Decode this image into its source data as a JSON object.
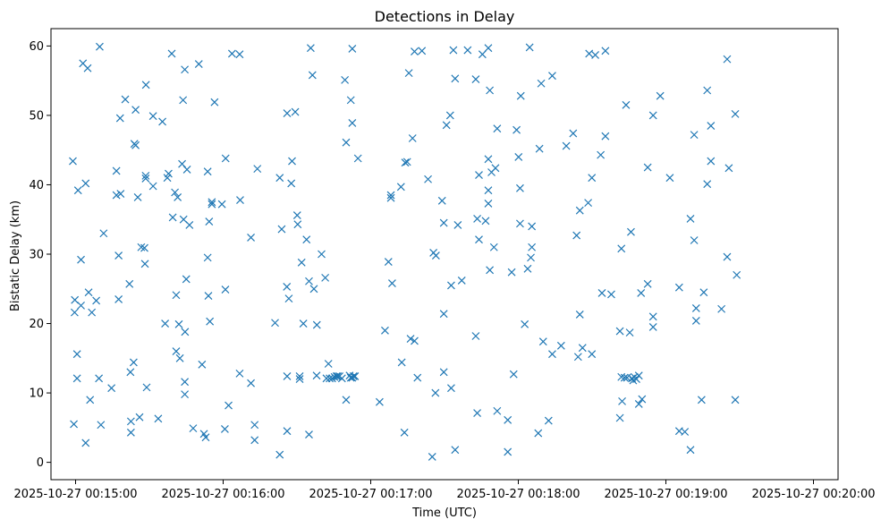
{
  "chart_data": {
    "type": "scatter",
    "title": "Detections in Delay",
    "xlabel": "Time (UTC)",
    "ylabel": "Bistatic Delay (km)",
    "x_unit": "seconds after 2025-10-27 00:15:00",
    "xlim": [
      -10,
      310
    ],
    "ylim": [
      -2.5,
      62.5
    ],
    "x_ticks": [
      {
        "value": 0,
        "label": "2025-10-27 00:15:00"
      },
      {
        "value": 60,
        "label": "2025-10-27 00:16:00"
      },
      {
        "value": 120,
        "label": "2025-10-27 00:17:00"
      },
      {
        "value": 180,
        "label": "2025-10-27 00:18:00"
      },
      {
        "value": 240,
        "label": "2025-10-27 00:19:00"
      },
      {
        "value": 300,
        "label": "2025-10-27 00:20:00"
      }
    ],
    "y_ticks": [
      {
        "value": 0,
        "label": "0"
      },
      {
        "value": 10,
        "label": "10"
      },
      {
        "value": 20,
        "label": "20"
      },
      {
        "value": 30,
        "label": "30"
      },
      {
        "value": 40,
        "label": "40"
      },
      {
        "value": 50,
        "label": "50"
      },
      {
        "value": 60,
        "label": "60"
      }
    ],
    "marker": "x",
    "color": "#1f77b4",
    "grid": false,
    "points": [
      [
        -1.1,
        43.4
      ],
      [
        -0.7,
        5.5
      ],
      [
        -0.4,
        21.6
      ],
      [
        -0.3,
        23.4
      ],
      [
        0.6,
        12.1
      ],
      [
        0.6,
        15.6
      ],
      [
        1.0,
        39.2
      ],
      [
        2.2,
        22.6
      ],
      [
        2.2,
        29.2
      ],
      [
        3.0,
        57.5
      ],
      [
        4.1,
        40.2
      ],
      [
        4.1,
        2.8
      ],
      [
        4.9,
        56.8
      ],
      [
        5.3,
        24.5
      ],
      [
        5.9,
        9.0
      ],
      [
        6.6,
        21.6
      ],
      [
        8.4,
        23.3
      ],
      [
        9.5,
        12.1
      ],
      [
        9.8,
        59.9
      ],
      [
        10.3,
        5.4
      ],
      [
        11.4,
        33.0
      ],
      [
        14.6,
        10.7
      ],
      [
        16.6,
        38.5
      ],
      [
        16.6,
        42.0
      ],
      [
        17.5,
        29.8
      ],
      [
        17.5,
        23.5
      ],
      [
        18.1,
        49.6
      ],
      [
        18.3,
        38.7
      ],
      [
        20.2,
        52.3
      ],
      [
        21.9,
        25.7
      ],
      [
        22.3,
        13.0
      ],
      [
        22.5,
        5.9
      ],
      [
        22.5,
        4.3
      ],
      [
        23.6,
        14.4
      ],
      [
        23.9,
        45.9
      ],
      [
        24.4,
        50.8
      ],
      [
        24.4,
        45.7
      ],
      [
        25.3,
        38.2
      ],
      [
        26.0,
        6.5
      ],
      [
        26.7,
        31.0
      ],
      [
        28.0,
        30.9
      ],
      [
        28.2,
        28.6
      ],
      [
        28.5,
        41.3
      ],
      [
        28.5,
        40.9
      ],
      [
        28.6,
        54.4
      ],
      [
        28.9,
        10.8
      ],
      [
        31.5,
        39.8
      ],
      [
        31.5,
        49.9
      ],
      [
        33.6,
        6.3
      ],
      [
        35.3,
        49.1
      ],
      [
        36.4,
        20.0
      ],
      [
        37.3,
        41.0
      ],
      [
        37.8,
        41.6
      ],
      [
        39.1,
        58.9
      ],
      [
        39.5,
        35.3
      ],
      [
        40.4,
        38.9
      ],
      [
        40.9,
        16.0
      ],
      [
        40.9,
        24.1
      ],
      [
        41.5,
        38.2
      ],
      [
        42.0,
        19.9
      ],
      [
        42.4,
        15.0
      ],
      [
        43.3,
        43.0
      ],
      [
        43.7,
        52.2
      ],
      [
        43.9,
        35.0
      ],
      [
        44.4,
        56.6
      ],
      [
        44.4,
        11.6
      ],
      [
        44.4,
        9.8
      ],
      [
        44.5,
        18.8
      ],
      [
        45.0,
        26.4
      ],
      [
        45.3,
        42.2
      ],
      [
        46.3,
        34.2
      ],
      [
        47.8,
        4.9
      ],
      [
        50.1,
        57.4
      ],
      [
        51.4,
        14.1
      ],
      [
        52.2,
        4.1
      ],
      [
        52.9,
        3.6
      ],
      [
        53.7,
        41.9
      ],
      [
        53.7,
        29.5
      ],
      [
        54.0,
        24.0
      ],
      [
        54.3,
        34.7
      ],
      [
        54.6,
        20.3
      ],
      [
        55.4,
        37.2
      ],
      [
        55.4,
        37.5
      ],
      [
        56.5,
        51.9
      ],
      [
        59.5,
        37.2
      ],
      [
        60.9,
        24.9
      ],
      [
        60.7,
        4.8
      ],
      [
        61.0,
        43.8
      ],
      [
        62.2,
        8.2
      ],
      [
        63.6,
        58.9
      ],
      [
        66.7,
        58.8
      ],
      [
        66.7,
        12.8
      ],
      [
        66.9,
        37.8
      ],
      [
        71.3,
        11.4
      ],
      [
        71.3,
        32.4
      ],
      [
        72.8,
        3.2
      ],
      [
        72.8,
        5.4
      ],
      [
        73.9,
        42.3
      ],
      [
        81.1,
        20.1
      ],
      [
        83.0,
        41.0
      ],
      [
        83.8,
        33.6
      ],
      [
        83.0,
        1.1
      ],
      [
        85.9,
        25.3
      ],
      [
        86.0,
        50.3
      ],
      [
        86.0,
        4.5
      ],
      [
        86.0,
        12.4
      ],
      [
        86.7,
        23.6
      ],
      [
        87.7,
        40.2
      ],
      [
        88.0,
        43.4
      ],
      [
        89.3,
        50.5
      ],
      [
        90.1,
        35.6
      ],
      [
        90.3,
        34.3
      ],
      [
        91.1,
        12.4
      ],
      [
        91.1,
        12.0
      ],
      [
        91.9,
        28.8
      ],
      [
        92.6,
        20.0
      ],
      [
        93.9,
        32.1
      ],
      [
        94.9,
        26.1
      ],
      [
        94.9,
        4.0
      ],
      [
        95.6,
        59.7
      ],
      [
        96.3,
        55.8
      ],
      [
        96.9,
        25.0
      ],
      [
        98.0,
        12.5
      ],
      [
        98.1,
        19.8
      ],
      [
        100.0,
        30.0
      ],
      [
        101.5,
        26.6
      ],
      [
        102.0,
        12.1
      ],
      [
        102.8,
        14.2
      ],
      [
        103.3,
        12.1
      ],
      [
        104.3,
        12.1
      ],
      [
        105.3,
        12.3
      ],
      [
        106.1,
        12.4
      ],
      [
        106.6,
        12.4
      ],
      [
        107.3,
        12.4
      ],
      [
        108.3,
        12.1
      ],
      [
        109.5,
        55.1
      ],
      [
        110.0,
        46.1
      ],
      [
        110.0,
        9.0
      ],
      [
        111.4,
        12.5
      ],
      [
        111.9,
        52.2
      ],
      [
        111.9,
        12.2
      ],
      [
        112.5,
        59.6
      ],
      [
        112.5,
        48.9
      ],
      [
        112.5,
        12.2
      ],
      [
        113.0,
        12.4
      ],
      [
        113.6,
        12.4
      ],
      [
        114.8,
        43.8
      ],
      [
        123.6,
        8.7
      ],
      [
        125.8,
        19.0
      ],
      [
        127.2,
        28.9
      ],
      [
        128.2,
        38.5
      ],
      [
        128.2,
        38.1
      ],
      [
        128.7,
        25.8
      ],
      [
        132.3,
        39.7
      ],
      [
        132.6,
        14.4
      ],
      [
        133.7,
        4.3
      ],
      [
        134.0,
        43.2
      ],
      [
        134.8,
        43.3
      ],
      [
        135.5,
        56.1
      ],
      [
        136.2,
        17.8
      ],
      [
        137.0,
        46.7
      ],
      [
        137.8,
        59.2
      ],
      [
        137.8,
        17.5
      ],
      [
        139.0,
        12.2
      ],
      [
        140.8,
        59.3
      ],
      [
        143.3,
        40.8
      ],
      [
        145.0,
        0.8
      ],
      [
        145.5,
        30.2
      ],
      [
        146.3,
        10.0
      ],
      [
        146.5,
        29.8
      ],
      [
        149.0,
        37.7
      ],
      [
        149.7,
        34.5
      ],
      [
        149.7,
        21.4
      ],
      [
        149.7,
        13.0
      ],
      [
        150.8,
        48.6
      ],
      [
        152.3,
        50.0
      ],
      [
        152.7,
        25.5
      ],
      [
        152.7,
        10.7
      ],
      [
        153.6,
        59.4
      ],
      [
        154.3,
        55.3
      ],
      [
        154.3,
        1.8
      ],
      [
        155.4,
        34.2
      ],
      [
        157.0,
        26.2
      ],
      [
        159.4,
        59.4
      ],
      [
        162.7,
        18.2
      ],
      [
        162.7,
        55.2
      ],
      [
        163.3,
        35.1
      ],
      [
        163.3,
        7.1
      ],
      [
        164.0,
        32.1
      ],
      [
        164.0,
        41.4
      ],
      [
        165.4,
        58.8
      ],
      [
        166.7,
        34.8
      ],
      [
        167.8,
        59.7
      ],
      [
        167.8,
        43.7
      ],
      [
        167.8,
        39.2
      ],
      [
        167.8,
        37.3
      ],
      [
        168.4,
        53.6
      ],
      [
        168.4,
        27.7
      ],
      [
        169.1,
        41.8
      ],
      [
        170.1,
        31.0
      ],
      [
        170.7,
        42.4
      ],
      [
        171.4,
        48.1
      ],
      [
        171.4,
        7.4
      ],
      [
        175.7,
        6.1
      ],
      [
        175.7,
        1.5
      ],
      [
        177.3,
        27.4
      ],
      [
        178.1,
        12.7
      ],
      [
        179.3,
        47.9
      ],
      [
        180.1,
        44.0
      ],
      [
        180.7,
        39.5
      ],
      [
        180.7,
        34.4
      ],
      [
        181.0,
        52.8
      ],
      [
        182.6,
        19.9
      ],
      [
        183.8,
        27.9
      ],
      [
        184.6,
        59.8
      ],
      [
        185.1,
        29.5
      ],
      [
        185.5,
        34.0
      ],
      [
        185.5,
        31.0
      ],
      [
        188.1,
        4.2
      ],
      [
        188.6,
        45.2
      ],
      [
        189.3,
        54.6
      ],
      [
        190.1,
        17.4
      ],
      [
        192.3,
        6.0
      ],
      [
        193.8,
        55.7
      ],
      [
        193.8,
        15.6
      ],
      [
        197.4,
        16.8
      ],
      [
        199.5,
        45.6
      ],
      [
        202.3,
        47.4
      ],
      [
        203.7,
        32.7
      ],
      [
        204.3,
        15.2
      ],
      [
        205.0,
        36.3
      ],
      [
        205.0,
        21.3
      ],
      [
        206.1,
        16.5
      ],
      [
        208.4,
        37.4
      ],
      [
        209.9,
        41.0
      ],
      [
        209.9,
        15.6
      ],
      [
        208.8,
        58.9
      ],
      [
        211.3,
        58.7
      ],
      [
        213.5,
        44.3
      ],
      [
        214.0,
        24.4
      ],
      [
        215.4,
        47.0
      ],
      [
        215.4,
        59.3
      ],
      [
        217.8,
        24.2
      ],
      [
        221.3,
        18.9
      ],
      [
        221.3,
        6.4
      ],
      [
        221.9,
        30.8
      ],
      [
        221.9,
        12.3
      ],
      [
        222.2,
        8.8
      ],
      [
        223.2,
        12.2
      ],
      [
        223.8,
        51.5
      ],
      [
        224.2,
        12.2
      ],
      [
        225.3,
        18.7
      ],
      [
        225.8,
        33.2
      ],
      [
        226.2,
        12.1
      ],
      [
        226.7,
        11.8
      ],
      [
        227.2,
        12.3
      ],
      [
        228.0,
        12.0
      ],
      [
        229.0,
        12.5
      ],
      [
        229.0,
        8.4
      ],
      [
        229.9,
        24.4
      ],
      [
        230.3,
        9.1
      ],
      [
        232.6,
        25.7
      ],
      [
        232.6,
        42.5
      ],
      [
        234.8,
        19.5
      ],
      [
        234.8,
        21.0
      ],
      [
        234.8,
        50.0
      ],
      [
        237.7,
        52.8
      ],
      [
        241.6,
        41.0
      ],
      [
        245.4,
        25.2
      ],
      [
        245.4,
        4.5
      ],
      [
        247.7,
        4.4
      ],
      [
        250.0,
        35.1
      ],
      [
        250.0,
        1.8
      ],
      [
        251.5,
        47.2
      ],
      [
        251.5,
        32.0
      ],
      [
        252.3,
        22.2
      ],
      [
        252.3,
        20.4
      ],
      [
        254.5,
        9.0
      ],
      [
        255.4,
        24.5
      ],
      [
        256.8,
        40.1
      ],
      [
        256.8,
        53.6
      ],
      [
        258.3,
        48.5
      ],
      [
        258.3,
        43.4
      ],
      [
        262.6,
        22.1
      ],
      [
        264.9,
        58.1
      ],
      [
        264.9,
        29.6
      ],
      [
        265.6,
        42.4
      ],
      [
        268.2,
        50.2
      ],
      [
        268.2,
        9.0
      ],
      [
        268.8,
        27.0
      ]
    ]
  }
}
